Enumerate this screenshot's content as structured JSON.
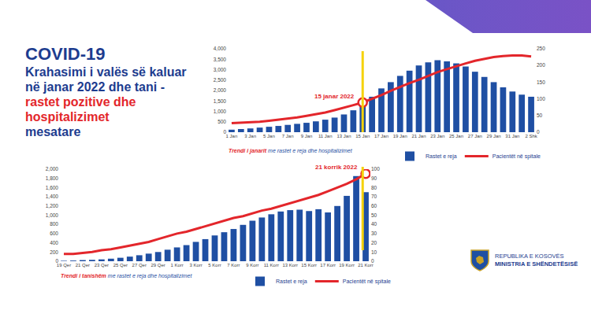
{
  "header": {
    "title": "COVID-19",
    "title_color": "#1d3c8f",
    "lines": [
      {
        "text": "Krahasimi i valës së kaluar në janar 2022 dhe tani -",
        "color": "#1d3c8f"
      },
      {
        "text": "rastet pozitive dhe hospitalizimet",
        "color": "#e3262b"
      },
      {
        "text": "mesatare",
        "color": "#1d3c8f"
      }
    ]
  },
  "chart_data": [
    {
      "type": "bar",
      "subtitle": {
        "lead": "Trendi i janarit",
        "text": "me rastet e reja dhe hospitalizimet"
      },
      "categories": [
        "1 Jan",
        null,
        "3 Jan",
        null,
        "5 Jan",
        null,
        "7 Jan",
        null,
        "9 Jan",
        null,
        "11 Jan",
        null,
        "13 Jan",
        null,
        "15 Jan",
        null,
        "17 Jan",
        null,
        "19 Jan",
        null,
        "21 Jan",
        null,
        "23 Jan",
        null,
        "25 Jan",
        null,
        "27 Jan",
        null,
        "29 Jan",
        null,
        "31 Jan",
        null,
        "2 Shk"
      ],
      "series": [
        {
          "name": "Rastet e reja",
          "type": "bar",
          "color": "#1f4fa3",
          "values": [
            120,
            150,
            180,
            220,
            260,
            300,
            350,
            400,
            450,
            520,
            600,
            700,
            850,
            1050,
            1350,
            1700,
            2100,
            2400,
            2700,
            2950,
            3200,
            3350,
            3450,
            3400,
            3300,
            3150,
            2900,
            2650,
            2400,
            2150,
            1950,
            1800,
            1700
          ]
        },
        {
          "name": "Pacientët në spitale",
          "type": "line",
          "color": "#e3262b",
          "axis": "y2",
          "values": [
            27,
            28,
            29,
            31,
            34,
            37,
            40,
            44,
            49,
            54,
            59,
            66,
            73,
            81,
            89,
            100,
            111,
            124,
            136,
            147,
            157,
            169,
            180,
            189,
            198,
            206,
            214,
            220,
            225,
            228,
            230,
            230,
            227
          ]
        }
      ],
      "ylim": [
        0,
        4000
      ],
      "yticks": [
        0,
        500,
        {
          "value": 1000,
          "label": "1,000"
        },
        {
          "value": 1500,
          "label": "1,500"
        },
        {
          "value": 2000,
          "label": "2,000"
        },
        {
          "value": 2500,
          "label": "2,500"
        },
        {
          "value": 3000,
          "label": "3,000"
        },
        {
          "value": 3500,
          "label": "3,500"
        },
        {
          "value": 4000,
          "label": "4,000"
        }
      ],
      "y2lim": [
        0,
        250
      ],
      "y2ticks": [
        0,
        50,
        100,
        150,
        200,
        250
      ],
      "annotations": [
        {
          "text": "15 janar 2022",
          "x": "15 Jan",
          "color": "#e3262b"
        }
      ],
      "legend": "bottom",
      "grid": false
    },
    {
      "type": "bar",
      "subtitle": {
        "lead": "Trendi i tanishëm",
        "text": "me rastet e reja dhe hospitalizimet"
      },
      "categories": [
        "19 Qer",
        null,
        "21 Qer",
        null,
        "23 Qer",
        null,
        "25 Qer",
        null,
        "27 Qer",
        null,
        "29 Qer",
        null,
        "1 Korr",
        null,
        "3 Korr",
        null,
        "5 Korr",
        null,
        "7 Korr",
        null,
        "9 Korr",
        null,
        "11 Korr",
        null,
        "13 Korr",
        null,
        "15 Korr",
        null,
        "17 Korr",
        null,
        "19 Korr",
        null,
        "21 Korr"
      ],
      "series": [
        {
          "name": "Rastet e reja",
          "type": "bar",
          "color": "#1f4fa3",
          "values": [
            10,
            15,
            25,
            30,
            40,
            55,
            75,
            100,
            130,
            165,
            200,
            250,
            300,
            350,
            420,
            480,
            560,
            630,
            700,
            790,
            880,
            950,
            1020,
            1080,
            1110,
            1120,
            1090,
            1130,
            1060,
            1200,
            1420,
            1850,
            1500
          ]
        },
        {
          "name": "Pacientët në spitale",
          "type": "line",
          "color": "#e3262b",
          "axis": "y2",
          "values": [
            8,
            8,
            9,
            10,
            12,
            13,
            15,
            17,
            19,
            21,
            24,
            27,
            30,
            32,
            35,
            38,
            41,
            44,
            47,
            49,
            52,
            55,
            57,
            60,
            63,
            66,
            69,
            72,
            76,
            80,
            84,
            89,
            95
          ]
        }
      ],
      "ylim": [
        0,
        2000
      ],
      "yticks": [
        0,
        200,
        400,
        600,
        800,
        {
          "value": 1000,
          "label": "1,000"
        },
        {
          "value": 1200,
          "label": "1,200"
        },
        {
          "value": 1400,
          "label": "1,400"
        },
        {
          "value": 1600,
          "label": "1,600"
        },
        {
          "value": 1800,
          "label": "1,800"
        },
        {
          "value": 2000,
          "label": "2,000"
        }
      ],
      "y2lim": [
        0,
        100
      ],
      "y2ticks": [
        0,
        10,
        20,
        30,
        40,
        50,
        60,
        70,
        80,
        90,
        100
      ],
      "annotations": [
        {
          "text": "21 korrik 2022",
          "x": "21 Korr",
          "color": "#e3262b"
        }
      ],
      "legend": "bottom",
      "grid": false
    }
  ],
  "footer": {
    "lines": [
      "REPUBLIKA E KOSOVËS",
      "MINISTRIA E SHËNDETËSISË"
    ]
  }
}
